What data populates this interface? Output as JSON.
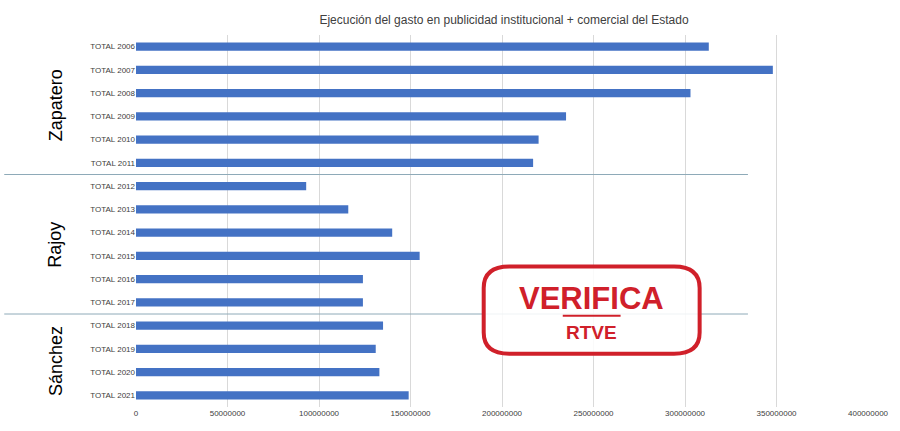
{
  "chart_data": {
    "type": "bar",
    "orientation": "horizontal",
    "title": "Ejecución del gasto en publicidad institucional + comercial del Estado",
    "categories": [
      "TOTAL 2006",
      "TOTAL 2007",
      "TOTAL 2008",
      "TOTAL 2009",
      "TOTAL 2010",
      "TOTAL 2011",
      "TOTAL 2012",
      "TOTAL 2013",
      "TOTAL 2014",
      "TOTAL 2015",
      "TOTAL 2016",
      "TOTAL 2017",
      "TOTAL 2018",
      "TOTAL 2019",
      "TOTAL 2020",
      "TOTAL 2021"
    ],
    "values": [
      313000000,
      348000000,
      303000000,
      235000000,
      220000000,
      217000000,
      93000000,
      116000000,
      140000000,
      155000000,
      124000000,
      124000000,
      135000000,
      131000000,
      133000000,
      149000000
    ],
    "color": "#4472c4",
    "xlim": [
      0,
      400000000
    ],
    "xticks": [
      0,
      50000000,
      100000000,
      150000000,
      200000000,
      250000000,
      300000000,
      350000000,
      400000000
    ],
    "grid": true,
    "annotations": [
      {
        "text": "Zapatero",
        "categories": [
          "TOTAL 2006",
          "TOTAL 2011"
        ]
      },
      {
        "text": "Rajoy",
        "categories": [
          "TOTAL 2012",
          "TOTAL 2017"
        ]
      },
      {
        "text": "Sánchez",
        "categories": [
          "TOTAL 2018",
          "TOTAL 2021"
        ]
      }
    ],
    "watermark": {
      "text": "VERIFICA",
      "subtext": "RTVE"
    }
  }
}
